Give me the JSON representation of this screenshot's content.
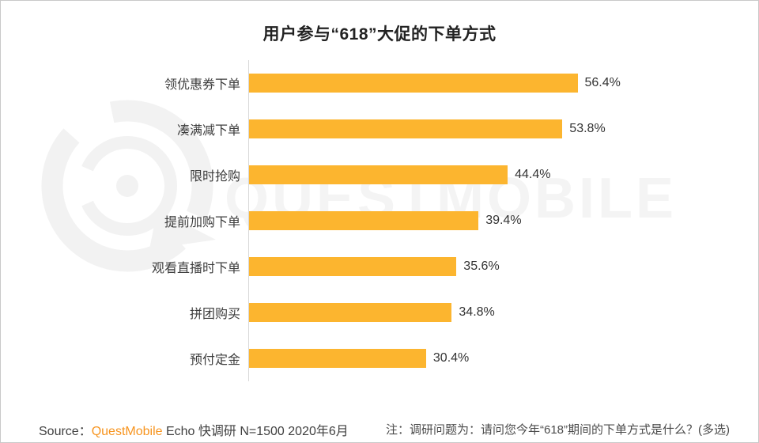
{
  "page_title": "用户参与“618”大促的下单方式",
  "chart_data": {
    "type": "bar",
    "orientation": "horizontal",
    "title": "用户参与“618”大促的下单方式",
    "categories": [
      "领优惠券下单",
      "凑满减下单",
      "限时抢购",
      "提前加购下单",
      "观看直播时下单",
      "拼团购买",
      "预付定金"
    ],
    "values": [
      56.4,
      53.8,
      44.4,
      39.4,
      35.6,
      34.8,
      30.4
    ],
    "value_suffix": "%",
    "value_labels": "outside-end",
    "xlim": [
      0,
      60
    ],
    "grid": false,
    "legend": "none",
    "bar_color": "#FCB52F"
  },
  "footer": {
    "source_prefix": "Source：",
    "source_brand": "QuestMobile",
    "source_rest": " Echo 快调研 N=1500 2020年6月",
    "note": "注：调研问题为：请问您今年“618”期间的下单方式是什么？(多选)"
  },
  "watermark": {
    "text": "QUESTMOBILE",
    "logo_icon": "questmobile-logo"
  },
  "colors": {
    "bar": "#FCB52F",
    "brand_orange": "#F7941E",
    "watermark_gray": "#F4F4F4",
    "axis_line": "#D9D9D9",
    "title_text": "#222222",
    "label_text": "#3D3D3D"
  }
}
